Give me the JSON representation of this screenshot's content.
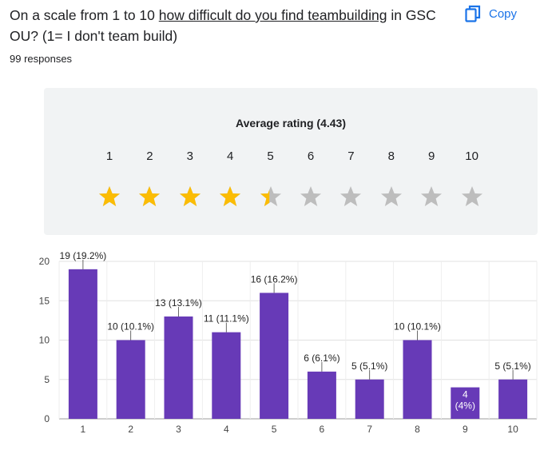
{
  "question": {
    "text_before": "On a scale from 1 to 10 ",
    "text_underlined": "how difficult do you find teambuilding",
    "text_after": " in GSC OU? (1= I don't team build)"
  },
  "responses_label": "99 responses",
  "copy_label": "Copy",
  "icons": {
    "copy": "copy-icon",
    "star": "star-icon"
  },
  "colors": {
    "accent": "#1a73e8",
    "bar": "#673ab7",
    "star_filled": "#fbbc04",
    "star_empty": "#bdbdbd"
  },
  "rating": {
    "title": "Average rating (4.43)",
    "average": 4.43,
    "scale": [
      "1",
      "2",
      "3",
      "4",
      "5",
      "6",
      "7",
      "8",
      "9",
      "10"
    ]
  },
  "chart_data": {
    "type": "bar",
    "categories": [
      "1",
      "2",
      "3",
      "4",
      "5",
      "6",
      "7",
      "8",
      "9",
      "10"
    ],
    "values": [
      19,
      10,
      13,
      11,
      16,
      6,
      5,
      10,
      4,
      5
    ],
    "labels": [
      "19 (19.2%)",
      "10 (10.1%)",
      "13 (13.1%)",
      "11 (11.1%)",
      "16 (16.2%)",
      "6 (6.1%)",
      "5 (5.1%)",
      "10 (10.1%)",
      "4 (4%)",
      "5 (5.1%)"
    ],
    "ylim": [
      0,
      20
    ],
    "yticks": [
      "0",
      "5",
      "10",
      "15",
      "20"
    ],
    "grid": true
  }
}
